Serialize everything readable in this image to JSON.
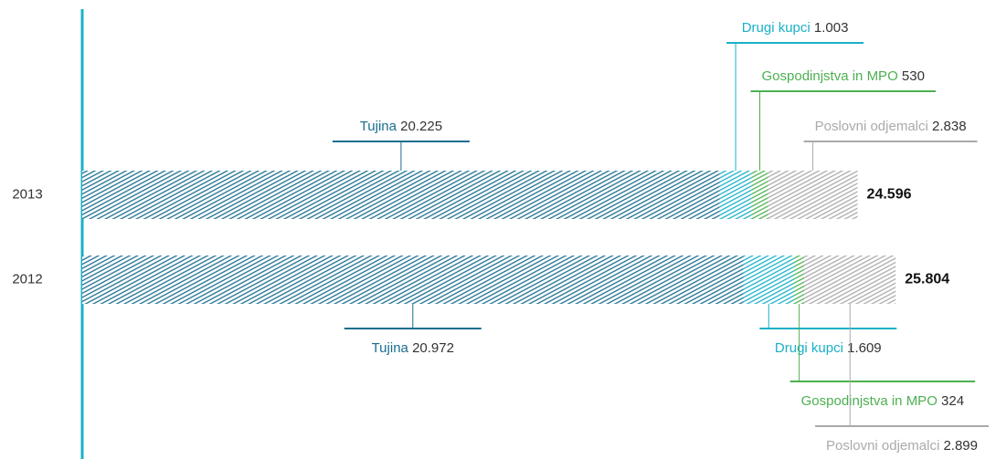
{
  "chart_data": {
    "type": "stacked-bar-horizontal",
    "categories": [
      "2013",
      "2012"
    ],
    "series": [
      {
        "name": "Tujina",
        "color": "#1a6e8e",
        "values": [
          20225,
          20972
        ],
        "value_labels": [
          "20.225",
          "20.972"
        ]
      },
      {
        "name": "Drugi kupci",
        "color": "#1ab0c8",
        "values": [
          1003,
          1609
        ],
        "value_labels": [
          "1.003",
          "1.609"
        ]
      },
      {
        "name": "Gospodinjstva in MPO",
        "color": "#4cb050",
        "values": [
          530,
          324
        ],
        "value_labels": [
          "530",
          "324"
        ]
      },
      {
        "name": "Poslovni odjemalci",
        "color": "#aaaaaa",
        "values": [
          2838,
          2899
        ],
        "value_labels": [
          "2.838",
          "2.899"
        ]
      }
    ],
    "totals": {
      "values": [
        24596,
        25804
      ],
      "value_labels": [
        "24.596",
        "25.804"
      ]
    }
  }
}
